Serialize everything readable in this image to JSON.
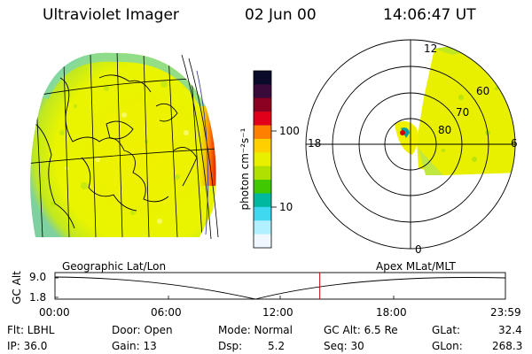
{
  "header": {
    "title": "Ultraviolet Imager",
    "date": "02 Jun 00",
    "time": "14:06:47 UT"
  },
  "colorbar": {
    "unit_label": "photon cm⁻²s⁻¹",
    "ticks": [
      "100",
      "10"
    ],
    "colors": [
      "#0a0a2a",
      "#3a0a3a",
      "#8b0020",
      "#e0001a",
      "#ff8000",
      "#ffd000",
      "#e8f000",
      "#b0e000",
      "#40c800",
      "#00b8a0",
      "#40d8f0",
      "#b0f0ff",
      "#f0f8ff"
    ]
  },
  "polar_plot": {
    "mlt_labels": [
      "12",
      "18",
      "6",
      "0"
    ],
    "mlat_labels": [
      "60",
      "70",
      "80"
    ]
  },
  "timeline": {
    "left_label": "Geographic Lat/Lon",
    "right_label": "Apex MLat/MLT",
    "axis_title": "GC Alt",
    "y_ticks": [
      "9.0",
      "1.8"
    ],
    "x_ticks": [
      "00:00",
      "06:00",
      "12:00",
      "18:00",
      "23:59"
    ],
    "marker_hour": 14.11,
    "marker_color": "#d00000"
  },
  "footer": {
    "flt": "Flt: LBHL",
    "ip": "IP: 36.0",
    "door": "Door: Open",
    "gain": "Gain: 13",
    "mode": "Mode: Normal",
    "dsp_label": "Dsp:",
    "dsp_value": "5.2",
    "gc_alt": "GC Alt: 6.5 Re",
    "seq": "Seq: 30",
    "glat_label": "GLat:",
    "glat_value": "32.4",
    "glon_label": "GLon:",
    "glon_value": "268.3"
  }
}
